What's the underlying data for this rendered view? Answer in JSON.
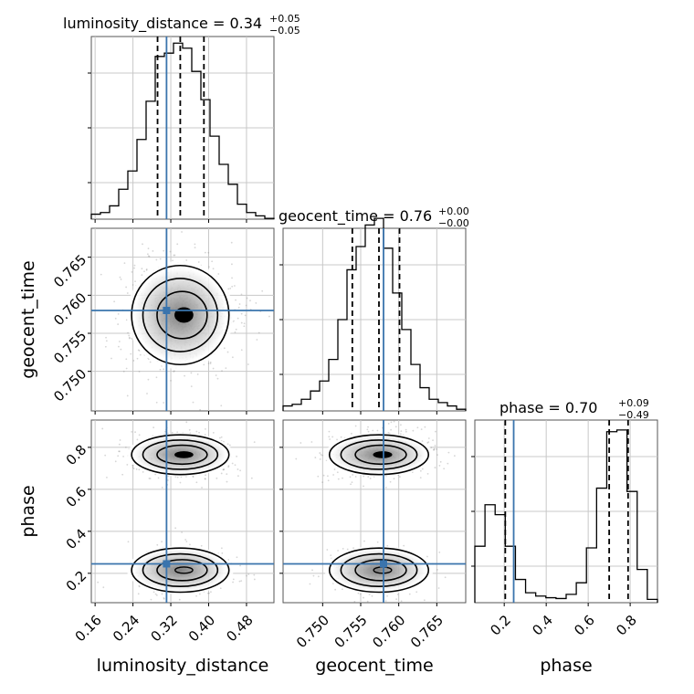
{
  "chart_data": {
    "type": "corner",
    "params": [
      {
        "name": "luminosity_distance",
        "label": "luminosity_distance",
        "range": [
          0.152,
          0.538
        ],
        "ticks": [
          "0.16",
          "0.24",
          "0.32",
          "0.40",
          "0.48"
        ],
        "tick_values": [
          0.16,
          0.24,
          0.32,
          0.4,
          0.48
        ],
        "injection": 0.311,
        "quantiles": [
          0.292,
          0.34,
          0.39
        ],
        "title_value": "0.34",
        "title_plus": "+0.05",
        "title_minus": "−0.05",
        "hist_bins": [
          0.03,
          0.04,
          0.08,
          0.18,
          0.29,
          0.48,
          0.71,
          0.98,
          1.0,
          1.06,
          1.03,
          0.89,
          0.72,
          0.5,
          0.33,
          0.21,
          0.09,
          0.04,
          0.02,
          0.005
        ]
      },
      {
        "name": "geocent_time",
        "label": "geocent_time",
        "range": [
          0.7448,
          0.7688
        ],
        "ticks": [
          "0.750",
          "0.755",
          "0.760",
          "0.765"
        ],
        "tick_values": [
          0.75,
          0.755,
          0.76,
          0.765
        ],
        "injection": 0.758,
        "quantiles": [
          0.7539,
          0.7574,
          0.7601
        ],
        "title_value": "0.76",
        "title_plus": "+0.00",
        "title_minus": "−0.00",
        "hist_bins": [
          0.03,
          0.04,
          0.07,
          0.12,
          0.18,
          0.31,
          0.55,
          0.85,
          0.99,
          1.12,
          1.16,
          0.98,
          0.71,
          0.49,
          0.28,
          0.14,
          0.07,
          0.05,
          0.03,
          0.01
        ]
      },
      {
        "name": "phase",
        "label": "phase",
        "range": [
          0.06,
          0.93
        ],
        "ticks": [
          "0.2",
          "0.4",
          "0.6",
          "0.8"
        ],
        "tick_values": [
          0.2,
          0.4,
          0.6,
          0.8
        ],
        "injection": 0.245,
        "quantiles": [
          0.205,
          0.7,
          0.79
        ],
        "title_value": "0.70",
        "title_plus": "+0.09",
        "title_minus": "−0.49",
        "hist_bins": [
          0.34,
          0.59,
          0.53,
          0.34,
          0.14,
          0.06,
          0.04,
          0.03,
          0.025,
          0.05,
          0.12,
          0.33,
          0.69,
          1.03,
          1.04,
          0.67,
          0.2,
          0.02
        ]
      }
    ],
    "hist_ylim": [
      0,
      1.1
    ],
    "injection_color": "#3a74ad",
    "contour_color": "#000000",
    "quantile_style": "dashed"
  }
}
